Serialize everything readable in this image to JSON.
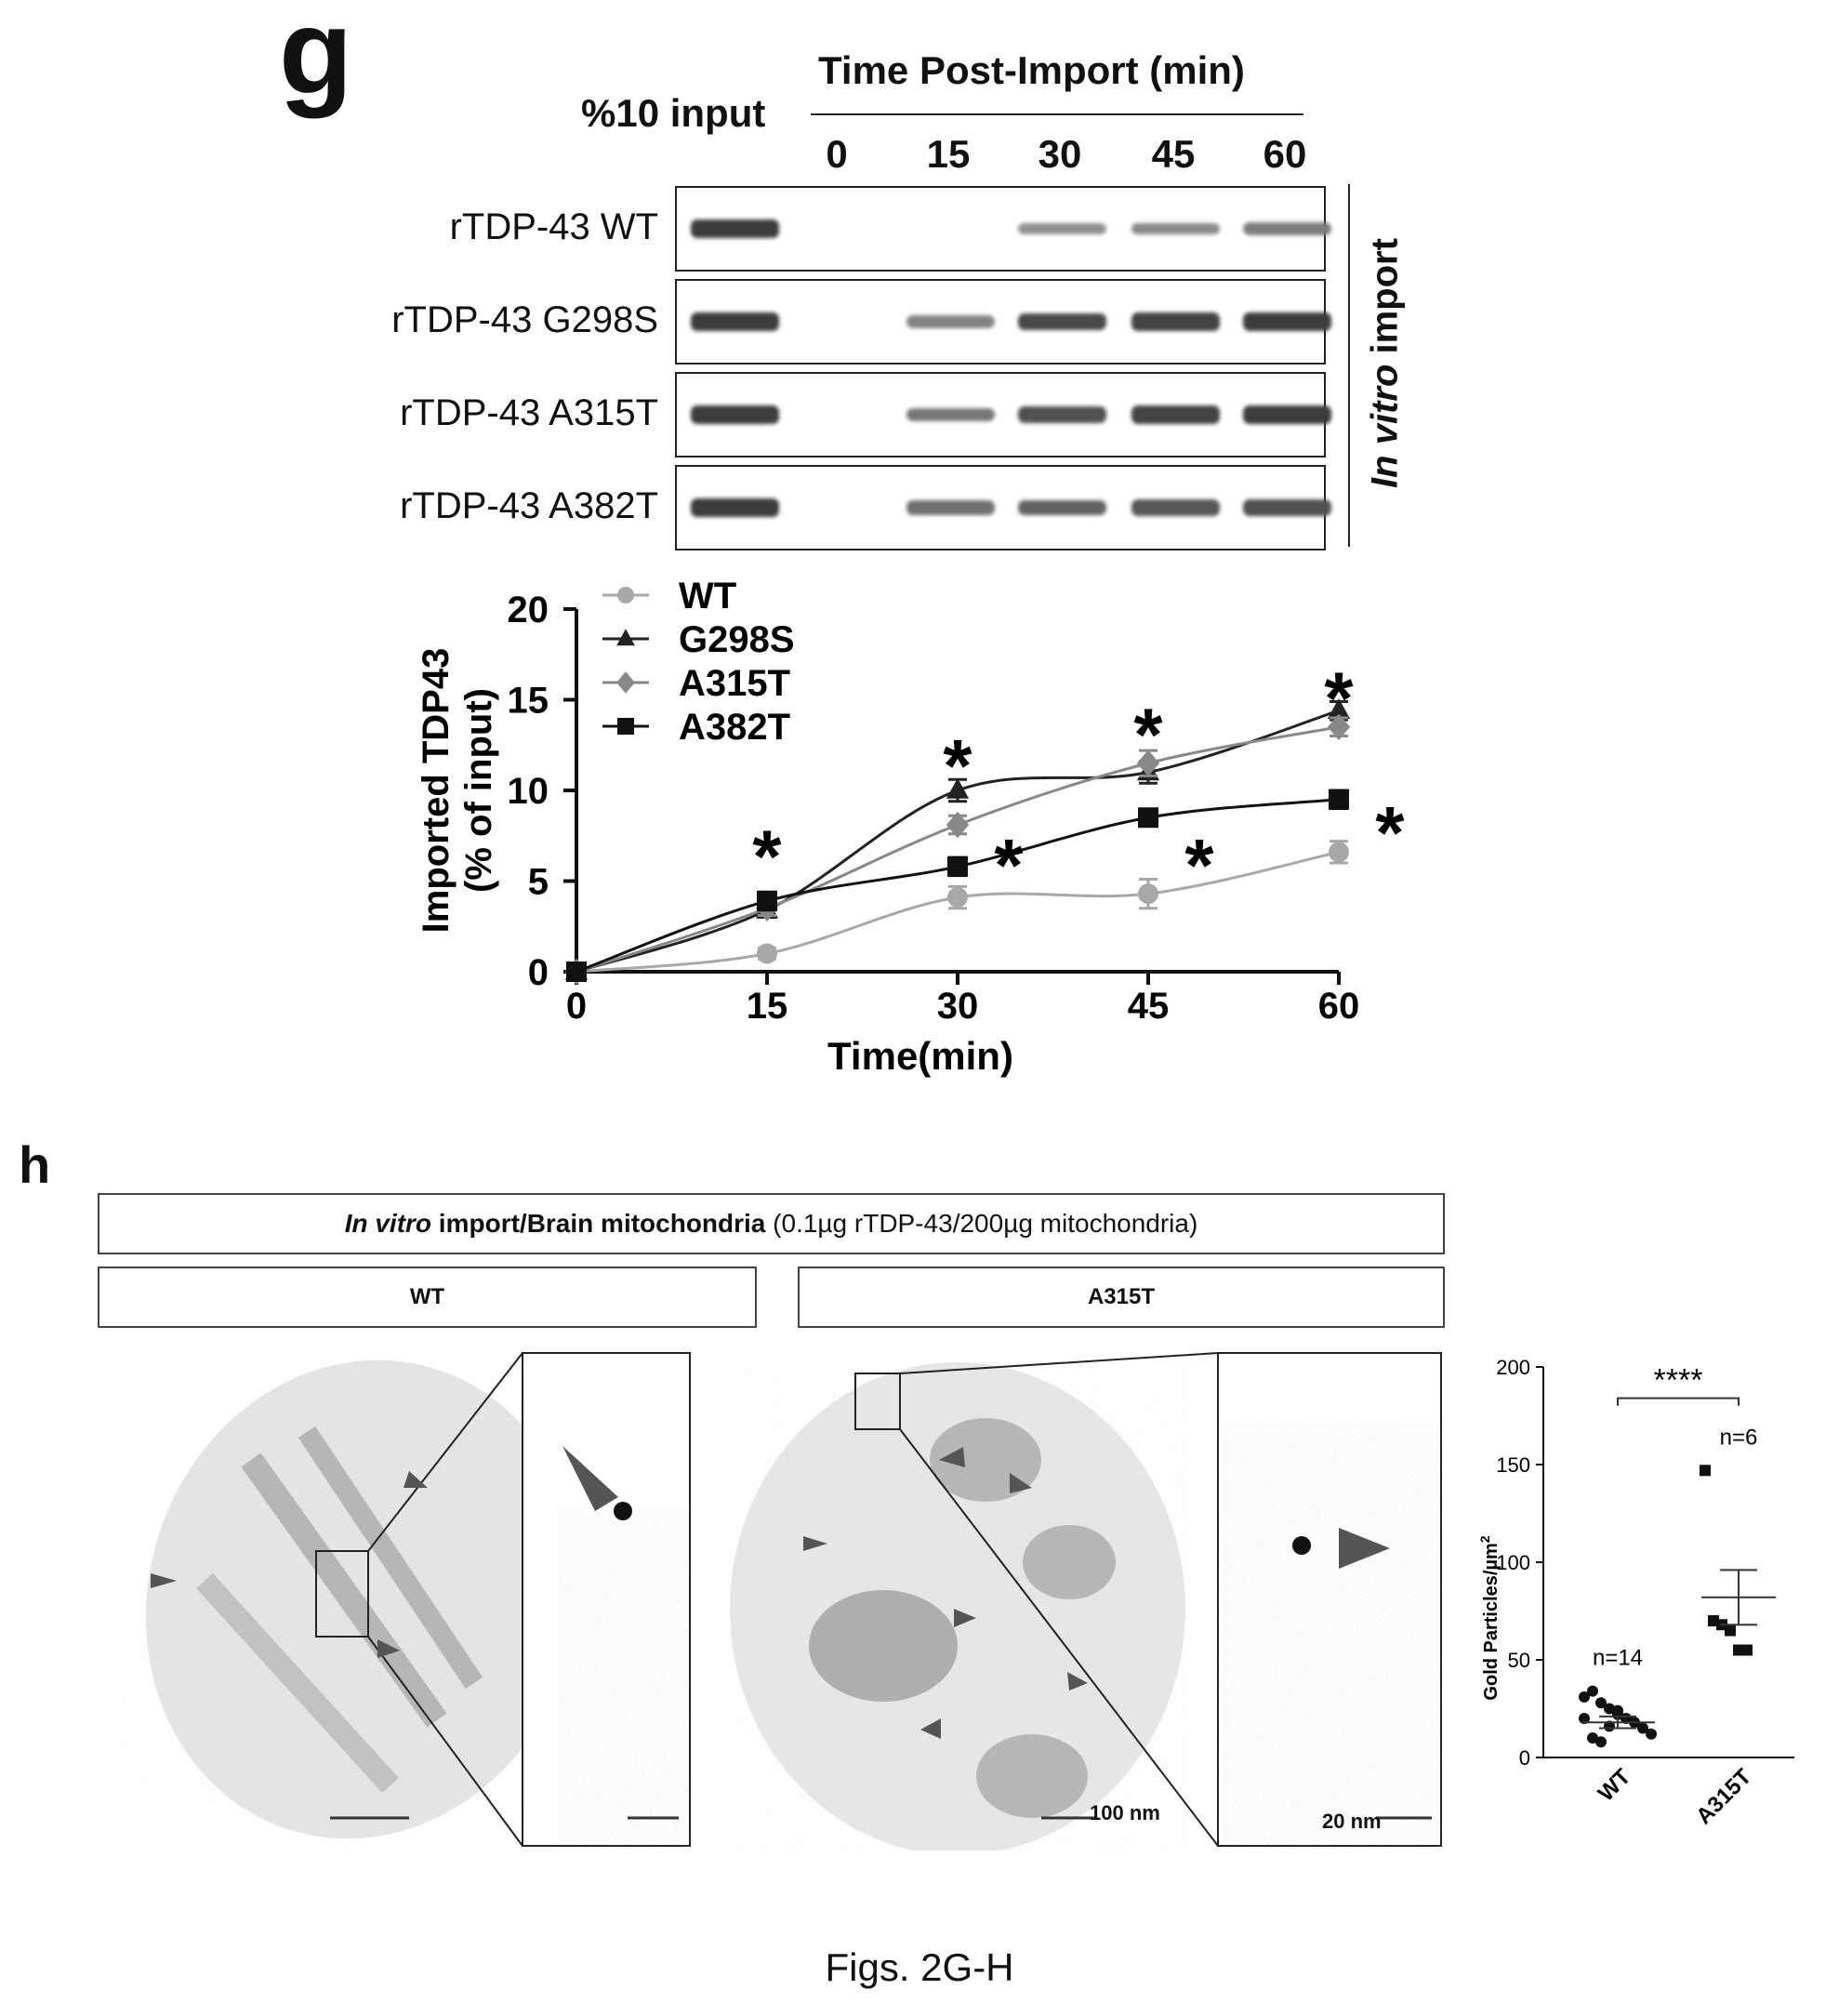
{
  "panel_g": {
    "letter": "g",
    "input_label": "%10 input",
    "time_header": "Time Post-Import (min)",
    "time_points": [
      "0",
      "15",
      "30",
      "45",
      "60"
    ],
    "side_label_italic": "In vitro",
    "side_label_rest": " import",
    "blot_rows": [
      {
        "label": "rTDP-43 WT",
        "bands": [
          1,
          0,
          0,
          0.35,
          0.4,
          0.5
        ]
      },
      {
        "label": "rTDP-43 G298S",
        "bands": [
          1,
          0,
          0.45,
          0.9,
          0.95,
          1
        ]
      },
      {
        "label": "rTDP-43 A315T",
        "bands": [
          1,
          0,
          0.55,
          0.85,
          0.95,
          1
        ]
      },
      {
        "label": "rTDP-43 A382T",
        "bands": [
          1,
          0,
          0.6,
          0.7,
          0.8,
          0.85
        ]
      }
    ]
  },
  "chart_data": [
    {
      "type": "line",
      "title": "",
      "ylabel_line1": "Imported TDP43",
      "ylabel_line2": "(% of input)",
      "xlabel": "Time(min)",
      "x": [
        0,
        15,
        30,
        45,
        60
      ],
      "xlim": [
        0,
        60
      ],
      "ylim": [
        0,
        20
      ],
      "xticks": [
        "0",
        "15",
        "30",
        "45",
        "60"
      ],
      "yticks": [
        "0",
        "5",
        "10",
        "15",
        "20"
      ],
      "legend_position": "top-left",
      "series": [
        {
          "name": "WT",
          "marker": "circle",
          "color": "#a8a8a8",
          "values": [
            0,
            1,
            4.1,
            4.3,
            6.6
          ],
          "err": [
            0,
            0.3,
            0.6,
            0.8,
            0.6
          ]
        },
        {
          "name": "G298S",
          "marker": "triangle",
          "color": "#222222",
          "values": [
            0,
            3.4,
            10,
            11,
            14.4
          ],
          "err": [
            0,
            0.4,
            0.6,
            0.6,
            0.5
          ]
        },
        {
          "name": "A315T",
          "marker": "diamond",
          "color": "#888888",
          "values": [
            0,
            3.5,
            8.1,
            11.5,
            13.5
          ],
          "err": [
            0,
            0.4,
            0.5,
            0.7,
            0.5
          ]
        },
        {
          "name": "A382T",
          "marker": "square",
          "color": "#111111",
          "values": [
            0,
            3.9,
            5.8,
            8.5,
            9.5
          ],
          "err": [
            0,
            0.5,
            0.5,
            0.4,
            0.5
          ]
        }
      ],
      "significance_symbol": "*"
    },
    {
      "type": "scatter",
      "ylabel": "Gold Particles/µm",
      "ylabel_sup": "2",
      "categories": [
        "WT",
        "A315T"
      ],
      "ylim": [
        0,
        200
      ],
      "yticks": [
        "0",
        "50",
        "100",
        "150",
        "200"
      ],
      "significance": "****",
      "groups": [
        {
          "name": "WT",
          "n_label": "n=14",
          "marker": "circle",
          "mean": 18,
          "sem": 3,
          "points": [
            31,
            34,
            28,
            25,
            22,
            20,
            18,
            15,
            12,
            20,
            10,
            8,
            16,
            24
          ]
        },
        {
          "name": "A315T",
          "n_label": "n=6",
          "marker": "square",
          "mean": 82,
          "sem": 14,
          "points": [
            147,
            70,
            68,
            65,
            55,
            55
          ]
        }
      ]
    }
  ],
  "panel_h": {
    "letter": "h",
    "header_italic": "In vitro",
    "header_bold": " import/Brain mitochondria",
    "header_rest": " (0.1µg rTDP-43/200µg mitochondria)",
    "wt_label": "WT",
    "mut_label": "A315T",
    "scale_100": "100 nm",
    "scale_20": "20 nm"
  },
  "caption": "Figs. 2G-H"
}
